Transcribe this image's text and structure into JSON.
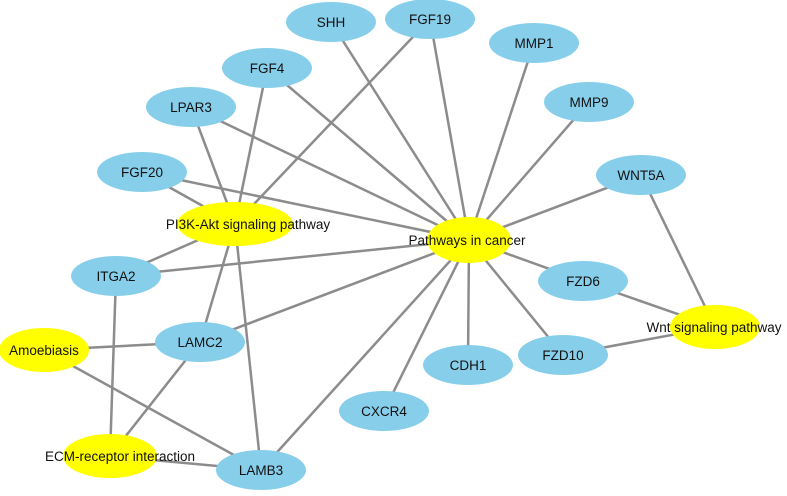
{
  "colors": {
    "gene_node": "#87CEEB",
    "pathway_node": "#FFFF00",
    "edge": "#8c8c8c",
    "text": "#111111",
    "background": "#ffffff"
  },
  "nodes": [
    {
      "id": "SHH",
      "label": "SHH",
      "kind": "gene"
    },
    {
      "id": "FGF19",
      "label": "FGF19",
      "kind": "gene"
    },
    {
      "id": "MMP1",
      "label": "MMP1",
      "kind": "gene"
    },
    {
      "id": "FGF4",
      "label": "FGF4",
      "kind": "gene"
    },
    {
      "id": "MMP9",
      "label": "MMP9",
      "kind": "gene"
    },
    {
      "id": "LPAR3",
      "label": "LPAR3",
      "kind": "gene"
    },
    {
      "id": "FGF20",
      "label": "FGF20",
      "kind": "gene"
    },
    {
      "id": "WNT5A",
      "label": "WNT5A",
      "kind": "gene"
    },
    {
      "id": "PI3K",
      "label": "PI3K-Akt signaling pathway",
      "kind": "pathway"
    },
    {
      "id": "CANCER",
      "label": "Pathways in cancer",
      "kind": "pathway"
    },
    {
      "id": "ITGA2",
      "label": "ITGA2",
      "kind": "gene"
    },
    {
      "id": "FZD6",
      "label": "FZD6",
      "kind": "gene"
    },
    {
      "id": "WNT",
      "label": "Wnt signaling pathway",
      "kind": "pathway"
    },
    {
      "id": "AMOEBIASIS",
      "label": "Amoebiasis",
      "kind": "pathway"
    },
    {
      "id": "LAMC2",
      "label": "LAMC2",
      "kind": "gene"
    },
    {
      "id": "CDH1",
      "label": "CDH1",
      "kind": "gene"
    },
    {
      "id": "FZD10",
      "label": "FZD10",
      "kind": "gene"
    },
    {
      "id": "CXCR4",
      "label": "CXCR4",
      "kind": "gene"
    },
    {
      "id": "ECM",
      "label": "ECM-receptor interaction",
      "kind": "pathway"
    },
    {
      "id": "LAMB3",
      "label": "LAMB3",
      "kind": "gene"
    }
  ],
  "edges": [
    [
      "SHH",
      "CANCER"
    ],
    [
      "FGF19",
      "CANCER"
    ],
    [
      "FGF19",
      "PI3K"
    ],
    [
      "MMP1",
      "CANCER"
    ],
    [
      "MMP9",
      "CANCER"
    ],
    [
      "FGF4",
      "CANCER"
    ],
    [
      "FGF4",
      "PI3K"
    ],
    [
      "LPAR3",
      "CANCER"
    ],
    [
      "LPAR3",
      "PI3K"
    ],
    [
      "FGF20",
      "CANCER"
    ],
    [
      "FGF20",
      "PI3K"
    ],
    [
      "WNT5A",
      "CANCER"
    ],
    [
      "WNT5A",
      "WNT"
    ],
    [
      "ITGA2",
      "CANCER"
    ],
    [
      "ITGA2",
      "PI3K"
    ],
    [
      "ITGA2",
      "ECM"
    ],
    [
      "FZD6",
      "CANCER"
    ],
    [
      "FZD6",
      "WNT"
    ],
    [
      "FZD10",
      "CANCER"
    ],
    [
      "FZD10",
      "WNT"
    ],
    [
      "CDH1",
      "CANCER"
    ],
    [
      "CXCR4",
      "CANCER"
    ],
    [
      "LAMC2",
      "CANCER"
    ],
    [
      "LAMC2",
      "PI3K"
    ],
    [
      "LAMC2",
      "AMOEBIASIS"
    ],
    [
      "LAMC2",
      "ECM"
    ],
    [
      "LAMB3",
      "CANCER"
    ],
    [
      "LAMB3",
      "PI3K"
    ],
    [
      "LAMB3",
      "AMOEBIASIS"
    ],
    [
      "LAMB3",
      "ECM"
    ]
  ]
}
